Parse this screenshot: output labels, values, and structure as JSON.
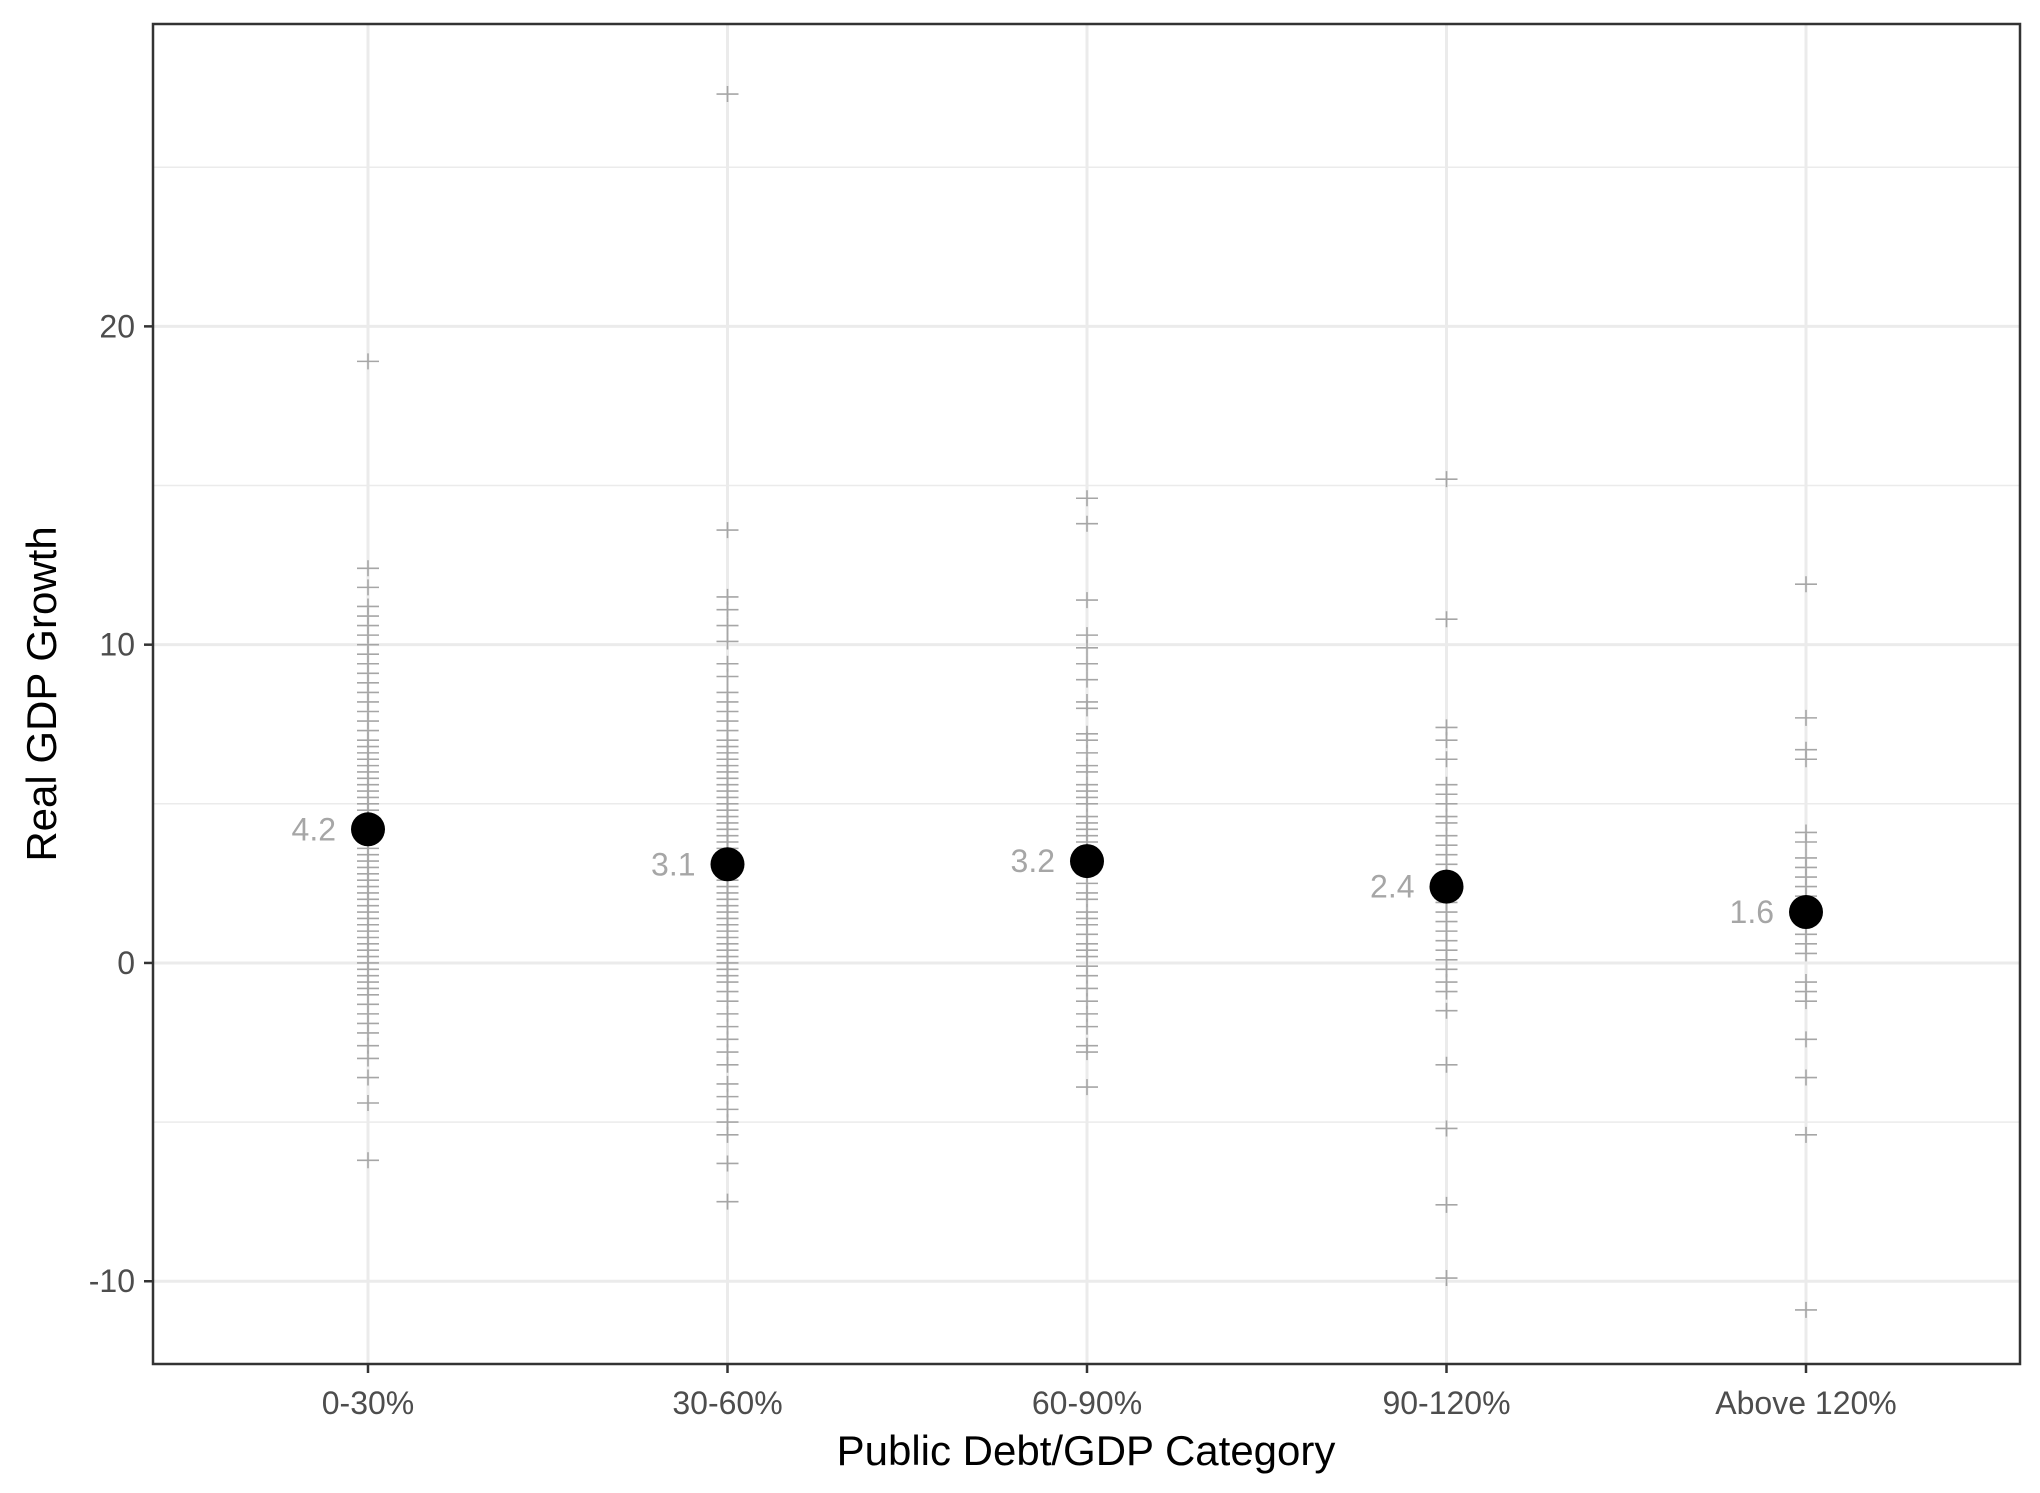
{
  "chart_data": {
    "type": "scatter",
    "xlabel": "Public Debt/GDP Category",
    "ylabel": "Real GDP Growth",
    "ylim": [
      -12.6,
      29.5
    ],
    "yticks": [
      -10,
      0,
      10,
      20
    ],
    "grid": true,
    "legend": "none",
    "colors": {
      "points": "#a6a6a6",
      "means": "#000000",
      "mean_labels": "#a6a6a6",
      "grid": "#ebebeb",
      "panel_border": "#333333"
    },
    "categories": [
      "0-30%",
      "30-60%",
      "60-90%",
      "90-120%",
      "Above 120%"
    ],
    "means": [
      {
        "category": "0-30%",
        "value": 4.2,
        "label": "4.2"
      },
      {
        "category": "30-60%",
        "value": 3.1,
        "label": "3.1"
      },
      {
        "category": "60-90%",
        "value": 3.2,
        "label": "3.2"
      },
      {
        "category": "90-120%",
        "value": 2.4,
        "label": "2.4"
      },
      {
        "category": "Above 120%",
        "value": 1.6,
        "label": "1.6"
      }
    ],
    "observations": [
      {
        "category": "0-30%",
        "values": [
          18.9,
          12.4,
          11.8,
          11.2,
          10.9,
          10.6,
          10.3,
          10.0,
          9.7,
          9.4,
          9.1,
          8.8,
          8.5,
          8.2,
          7.9,
          7.6,
          7.3,
          7.0,
          6.8,
          6.6,
          6.4,
          6.2,
          6.0,
          5.8,
          5.6,
          5.4,
          5.2,
          5.0,
          4.8,
          4.6,
          4.4,
          4.2,
          4.0,
          3.8,
          3.6,
          3.4,
          3.2,
          3.0,
          2.8,
          2.6,
          2.4,
          2.2,
          2.0,
          1.8,
          1.6,
          1.4,
          1.2,
          1.0,
          0.8,
          0.6,
          0.4,
          0.2,
          0.0,
          -0.2,
          -0.4,
          -0.6,
          -0.8,
          -1.0,
          -1.3,
          -1.6,
          -1.9,
          -2.2,
          -2.6,
          -3.0,
          -3.6,
          -4.4,
          -6.2
        ]
      },
      {
        "category": "30-60%",
        "values": [
          27.3,
          13.6,
          11.5,
          11.1,
          10.6,
          10.1,
          9.4,
          9.0,
          8.5,
          8.2,
          7.9,
          7.6,
          7.3,
          7.0,
          6.8,
          6.6,
          6.4,
          6.2,
          6.0,
          5.8,
          5.6,
          5.4,
          5.2,
          5.0,
          4.8,
          4.6,
          4.4,
          4.2,
          4.0,
          3.8,
          3.6,
          3.4,
          3.2,
          3.0,
          2.8,
          2.6,
          2.4,
          2.2,
          2.0,
          1.8,
          1.6,
          1.4,
          1.2,
          1.0,
          0.8,
          0.6,
          0.4,
          0.2,
          0.0,
          -0.2,
          -0.4,
          -0.6,
          -0.9,
          -1.2,
          -1.6,
          -2.0,
          -2.4,
          -2.8,
          -3.2,
          -3.8,
          -4.2,
          -4.6,
          -5.0,
          -5.4,
          -6.3,
          -7.5
        ]
      },
      {
        "category": "60-90%",
        "values": [
          14.6,
          13.8,
          11.4,
          10.3,
          9.9,
          9.4,
          8.9,
          8.2,
          8.0,
          7.2,
          7.0,
          6.6,
          6.2,
          6.0,
          5.6,
          5.4,
          5.2,
          5.0,
          4.6,
          4.4,
          4.2,
          4.0,
          3.8,
          3.5,
          3.2,
          3.0,
          2.8,
          2.5,
          2.2,
          2.0,
          1.6,
          1.4,
          1.2,
          0.9,
          0.6,
          0.4,
          0.2,
          -0.1,
          -0.4,
          -0.8,
          -1.2,
          -1.6,
          -2.0,
          -2.6,
          -2.8,
          -3.9
        ]
      },
      {
        "category": "90-120%",
        "values": [
          15.2,
          10.8,
          7.4,
          7.0,
          6.4,
          5.6,
          5.3,
          5.0,
          4.6,
          4.4,
          4.0,
          3.7,
          3.4,
          3.1,
          2.8,
          2.5,
          2.2,
          1.9,
          1.6,
          1.3,
          1.0,
          0.7,
          0.4,
          0.1,
          -0.2,
          -0.6,
          -0.9,
          -1.5,
          -3.2,
          -5.2,
          -7.6,
          -9.9
        ]
      },
      {
        "category": "Above 120%",
        "values": [
          11.9,
          7.7,
          6.7,
          6.4,
          4.1,
          3.8,
          3.3,
          3.0,
          2.7,
          2.4,
          2.1,
          1.8,
          1.5,
          1.2,
          0.9,
          0.6,
          0.3,
          -0.6,
          -0.9,
          -1.2,
          -2.4,
          -3.6,
          -5.4,
          -10.9
        ]
      }
    ]
  }
}
